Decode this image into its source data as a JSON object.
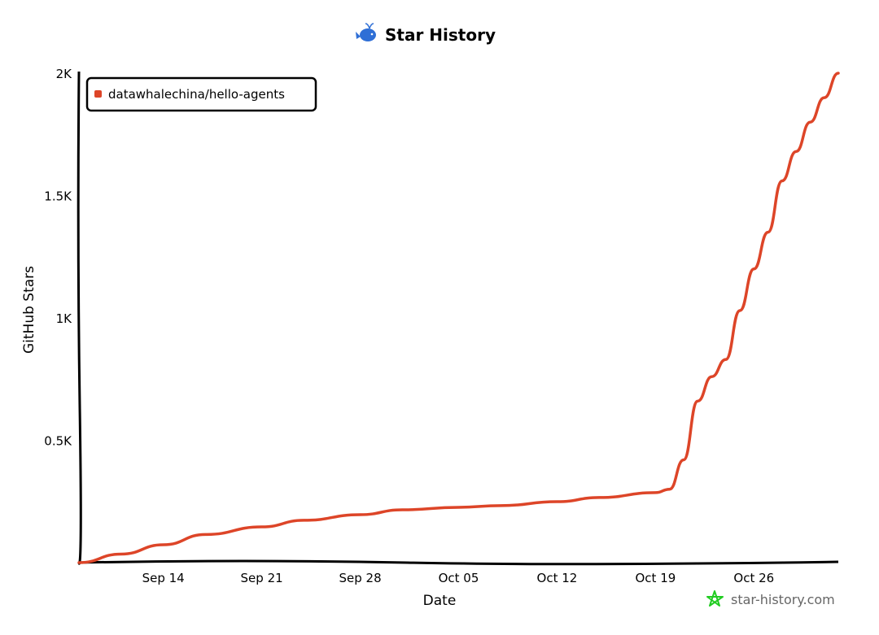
{
  "chart_data": {
    "type": "line",
    "title": "Star History",
    "xlabel": "Date",
    "ylabel": "GitHub Stars",
    "x_ticks": [
      "Sep 14",
      "Sep 21",
      "Sep 28",
      "Oct 05",
      "Oct 12",
      "Oct 19",
      "Oct 26"
    ],
    "y_ticks": [
      "0.5K",
      "1K",
      "1.5K",
      "2K"
    ],
    "y_tick_values": [
      500,
      1000,
      1500,
      2000
    ],
    "ylim": [
      0,
      2000
    ],
    "x_range_dates": [
      "2025-09-08",
      "2025-11-01"
    ],
    "x_tick_dates": [
      "2025-09-14",
      "2025-09-21",
      "2025-09-28",
      "2025-10-05",
      "2025-10-12",
      "2025-10-19",
      "2025-10-26"
    ],
    "grid": false,
    "legend_position": "top-left",
    "series": [
      {
        "name": "datawhalechina/hello-agents",
        "color": "#dd4528",
        "points": [
          [
            "2025-09-08",
            0
          ],
          [
            "2025-09-11",
            35
          ],
          [
            "2025-09-14",
            73
          ],
          [
            "2025-09-17",
            115
          ],
          [
            "2025-09-21",
            146
          ],
          [
            "2025-09-24",
            173
          ],
          [
            "2025-09-28",
            196
          ],
          [
            "2025-10-01",
            216
          ],
          [
            "2025-10-05",
            226
          ],
          [
            "2025-10-08",
            233
          ],
          [
            "2025-10-12",
            249
          ],
          [
            "2025-10-15",
            266
          ],
          [
            "2025-10-19",
            286
          ],
          [
            "2025-10-20",
            300
          ],
          [
            "2025-10-21",
            420
          ],
          [
            "2025-10-22",
            660
          ],
          [
            "2025-10-23",
            760
          ],
          [
            "2025-10-24",
            830
          ],
          [
            "2025-10-25",
            1030
          ],
          [
            "2025-10-26",
            1200
          ],
          [
            "2025-10-27",
            1350
          ],
          [
            "2025-10-28",
            1560
          ],
          [
            "2025-10-29",
            1680
          ],
          [
            "2025-10-30",
            1800
          ],
          [
            "2025-10-31",
            1900
          ],
          [
            "2025-11-01",
            2000
          ]
        ]
      }
    ]
  },
  "watermark": "star-history.com",
  "colors": {
    "line": "#dd4528",
    "logo": "#2f6fd6",
    "watermark_star": "#22cc22",
    "watermark_text": "#666666"
  }
}
